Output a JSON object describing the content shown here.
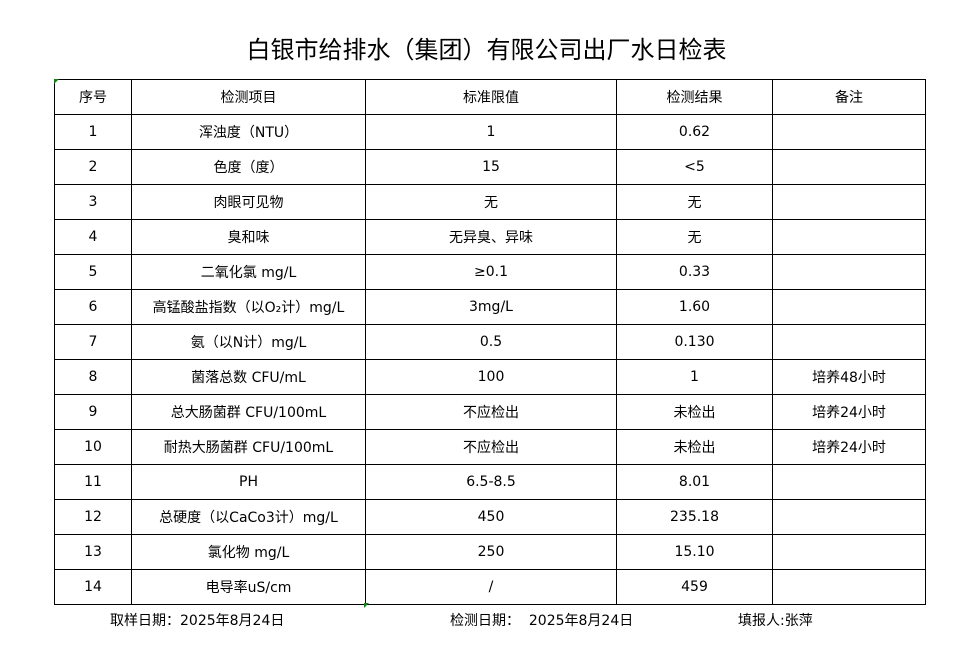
{
  "title": "白银市给排水（集团）有限公司出厂水日检表",
  "table": {
    "headers": [
      "序号",
      "检测项目",
      "标准限值",
      "检测结果",
      "备注"
    ],
    "rows": [
      [
        "1",
        "浑浊度（NTU）",
        "1",
        "0.62",
        ""
      ],
      [
        "2",
        "色度（度）",
        "15",
        "<5",
        ""
      ],
      [
        "3",
        "肉眼可见物",
        "无",
        "无",
        ""
      ],
      [
        "4",
        "臭和味",
        "无异臭、异味",
        "无",
        ""
      ],
      [
        "5",
        "二氧化氯 mg/L",
        "≥0.1",
        "0.33",
        ""
      ],
      [
        "6",
        "高锰酸盐指数（以O₂计）mg/L",
        "3mg/L",
        "1.60",
        ""
      ],
      [
        "7",
        "氨（以N计）mg/L",
        "0.5",
        "0.130",
        ""
      ],
      [
        "8",
        "菌落总数 CFU/mL",
        "100",
        "1",
        "培养48小时"
      ],
      [
        "9",
        "总大肠菌群 CFU/100mL",
        "不应检出",
        "未检出",
        "培养24小时"
      ],
      [
        "10",
        "耐热大肠菌群 CFU/100mL",
        "不应检出",
        "未检出",
        "培养24小时"
      ],
      [
        "11",
        "PH",
        "6.5-8.5",
        "8.01",
        ""
      ],
      [
        "12",
        "总硬度（以CaCo3计）mg/L",
        "450",
        "235.18",
        ""
      ],
      [
        "13",
        "氯化物 mg/L",
        "250",
        "15.10",
        ""
      ],
      [
        "14",
        "电导率uS/cm",
        "/",
        "459",
        ""
      ]
    ]
  },
  "footer": {
    "sampling_date": "取样日期：2025年8月24日",
    "test_date": "检测日期：  2025年8月24日",
    "reporter": "填报人:张萍"
  }
}
